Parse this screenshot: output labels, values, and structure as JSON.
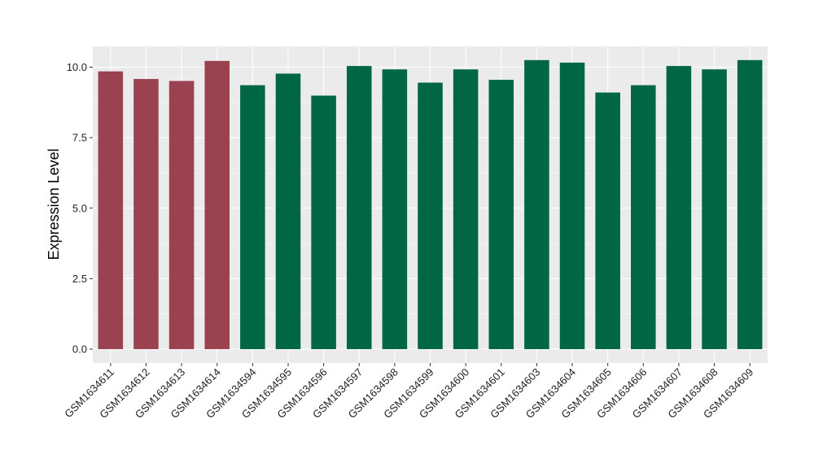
{
  "chart_data": {
    "type": "bar",
    "ylabel": "Expression Level",
    "xlabel": "",
    "title": "",
    "ylim": [
      0,
      10.7
    ],
    "yticks": [
      0.0,
      2.5,
      5.0,
      7.5,
      10.0
    ],
    "ytick_labels": [
      "0.0",
      "2.5",
      "5.0",
      "7.5",
      "10.0"
    ],
    "grid": true,
    "categories": [
      "GSM1634611",
      "GSM1634612",
      "GSM1634613",
      "GSM1634614",
      "GSM1634594",
      "GSM1634595",
      "GSM1634596",
      "GSM1634597",
      "GSM1634598",
      "GSM1634599",
      "GSM1634600",
      "GSM1634601",
      "GSM1634603",
      "GSM1634604",
      "GSM1634605",
      "GSM1634606",
      "GSM1634607",
      "GSM1634608",
      "GSM1634609"
    ],
    "values": [
      9.85,
      9.58,
      9.51,
      10.22,
      9.36,
      9.77,
      8.99,
      10.04,
      9.92,
      9.45,
      9.92,
      9.55,
      10.25,
      10.16,
      9.1,
      9.36,
      10.04,
      9.92,
      10.25
    ],
    "bar_colors": [
      "#9b4250",
      "#9b4250",
      "#9b4250",
      "#9b4250",
      "#006644",
      "#006644",
      "#006644",
      "#006644",
      "#006644",
      "#006644",
      "#006644",
      "#006644",
      "#006644",
      "#006644",
      "#006644",
      "#006644",
      "#006644",
      "#006644",
      "#006644"
    ],
    "panel_background": "#ebebeb",
    "gridline_color": "#ffffff"
  }
}
